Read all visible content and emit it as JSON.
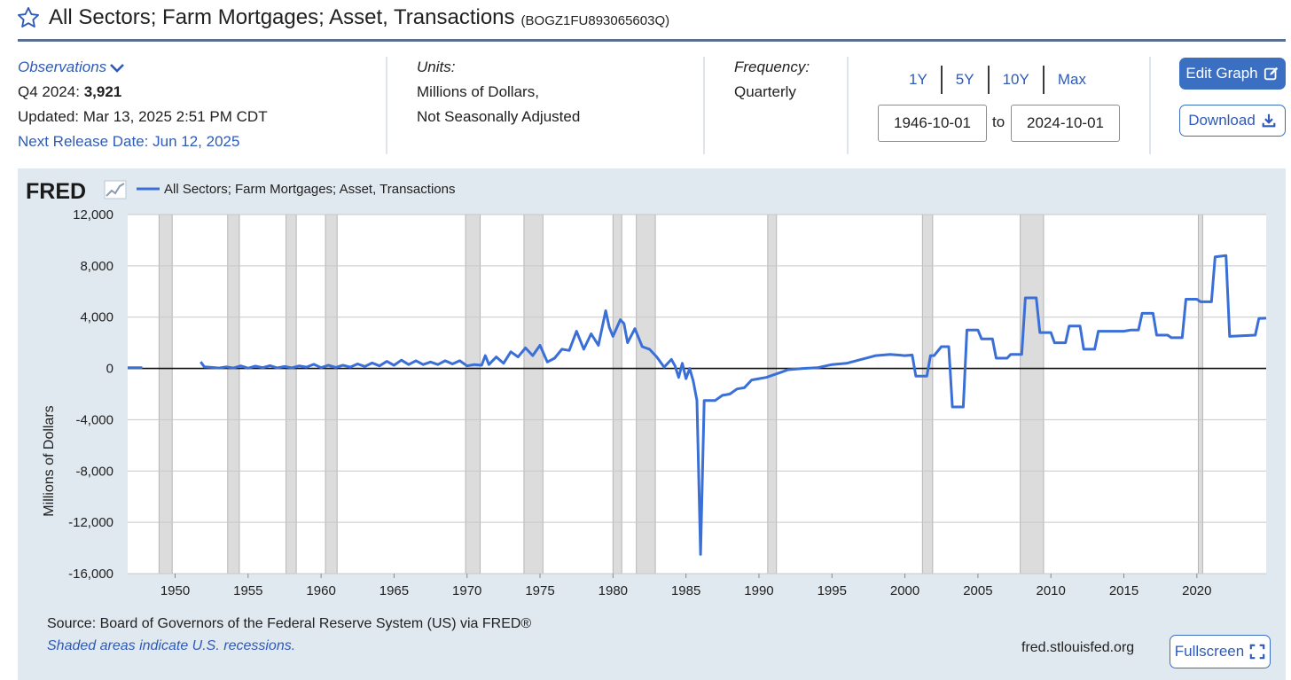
{
  "header": {
    "title": "All Sectors; Farm Mortgages; Asset, Transactions",
    "series_id": "(BOGZ1FU893065603Q)"
  },
  "observations": {
    "label": "Observations",
    "latest_period": "Q4 2024:",
    "latest_value": "3,921",
    "updated": "Updated: Mar 13, 2025 2:51 PM CDT",
    "next_release": "Next Release Date: Jun 12, 2025"
  },
  "units": {
    "label": "Units:",
    "line1": "Millions of Dollars,",
    "line2": "Not Seasonally Adjusted"
  },
  "frequency": {
    "label": "Frequency:",
    "value": "Quarterly"
  },
  "range_buttons": [
    "1Y",
    "5Y",
    "10Y",
    "Max"
  ],
  "dates": {
    "start": "1946-10-01",
    "to_label": "to",
    "end": "2024-10-01"
  },
  "buttons": {
    "edit": "Edit Graph",
    "download": "Download",
    "fullscreen": "Fullscreen"
  },
  "footer": {
    "source": "Source: Board of Governors of the Federal Reserve System (US) via FRED®",
    "recession_note": "Shaded areas indicate U.S. recessions.",
    "site": "fred.stlouisfed.org"
  },
  "colors": {
    "series": "#3a6fd8",
    "recession": "#dcdcdc",
    "panel": "#e1e9f0",
    "accent": "#3a6fc2"
  },
  "chart_data": {
    "type": "line",
    "brand": "FRED",
    "ylabel": "Millions of Dollars",
    "xlim": [
      1946.75,
      2024.75
    ],
    "ylim": [
      -16000,
      12000
    ],
    "y_ticks": [
      12000,
      8000,
      4000,
      0,
      -4000,
      -8000,
      -12000,
      -16000
    ],
    "y_tick_labels": [
      "12,000",
      "8,000",
      "4,000",
      "0",
      "-4,000",
      "-8,000",
      "-12,000",
      "-16,000"
    ],
    "x_ticks": [
      1950,
      1955,
      1960,
      1965,
      1970,
      1975,
      1980,
      1985,
      1990,
      1995,
      2000,
      2005,
      2010,
      2015,
      2020
    ],
    "grid": true,
    "legend_position": "top-left",
    "recessions": [
      [
        1948.9,
        1949.8
      ],
      [
        1953.6,
        1954.4
      ],
      [
        1957.6,
        1958.3
      ],
      [
        1960.3,
        1961.1
      ],
      [
        1969.9,
        1970.9
      ],
      [
        1973.9,
        1975.2
      ],
      [
        1980.0,
        1980.6
      ],
      [
        1981.6,
        1982.9
      ],
      [
        1990.6,
        1991.2
      ],
      [
        2001.2,
        2001.9
      ],
      [
        2007.9,
        2009.5
      ],
      [
        2020.1,
        2020.4
      ]
    ],
    "series": [
      {
        "name": "All Sectors; Farm Mortgages; Asset, Transactions",
        "segments": [
          [
            [
              1946.75,
              50
            ],
            [
              1947.75,
              60
            ]
          ],
          [
            [
              1951.75,
              520
            ],
            [
              1952.0,
              120
            ],
            [
              1952.5,
              80
            ],
            [
              1953.0,
              30
            ],
            [
              1953.5,
              120
            ],
            [
              1954.0,
              30
            ],
            [
              1954.5,
              200
            ],
            [
              1955.0,
              20
            ],
            [
              1955.5,
              180
            ],
            [
              1956.0,
              60
            ],
            [
              1956.5,
              220
            ],
            [
              1957.0,
              40
            ],
            [
              1957.5,
              150
            ],
            [
              1958.0,
              40
            ],
            [
              1958.5,
              200
            ],
            [
              1959.0,
              100
            ],
            [
              1959.5,
              320
            ],
            [
              1960.0,
              60
            ],
            [
              1960.5,
              250
            ],
            [
              1961.0,
              80
            ],
            [
              1961.5,
              250
            ],
            [
              1962.0,
              100
            ],
            [
              1962.5,
              350
            ],
            [
              1963.0,
              150
            ],
            [
              1963.5,
              430
            ],
            [
              1964.0,
              200
            ],
            [
              1964.5,
              550
            ],
            [
              1965.0,
              250
            ],
            [
              1965.5,
              650
            ],
            [
              1966.0,
              300
            ],
            [
              1966.5,
              600
            ],
            [
              1967.0,
              300
            ],
            [
              1967.5,
              500
            ],
            [
              1968.0,
              300
            ],
            [
              1968.5,
              600
            ],
            [
              1969.0,
              350
            ],
            [
              1969.5,
              600
            ],
            [
              1970.0,
              200
            ],
            [
              1970.5,
              300
            ],
            [
              1971.0,
              250
            ],
            [
              1971.25,
              1000
            ],
            [
              1971.5,
              300
            ],
            [
              1972.0,
              900
            ],
            [
              1972.5,
              400
            ],
            [
              1973.0,
              1300
            ],
            [
              1973.5,
              900
            ],
            [
              1974.0,
              1600
            ],
            [
              1974.5,
              1000
            ],
            [
              1975.0,
              1800
            ],
            [
              1975.5,
              500
            ],
            [
              1976.0,
              800
            ],
            [
              1976.5,
              1500
            ],
            [
              1977.0,
              1400
            ],
            [
              1977.5,
              2900
            ],
            [
              1978.0,
              1500
            ],
            [
              1978.5,
              2700
            ],
            [
              1979.0,
              1800
            ],
            [
              1979.5,
              4500
            ],
            [
              1979.75,
              3200
            ],
            [
              1980.0,
              2500
            ],
            [
              1980.5,
              3800
            ],
            [
              1980.75,
              3500
            ],
            [
              1981.0,
              2000
            ],
            [
              1981.5,
              3100
            ],
            [
              1982.0,
              1700
            ],
            [
              1982.5,
              1500
            ],
            [
              1983.0,
              900
            ],
            [
              1983.5,
              100
            ],
            [
              1984.0,
              700
            ],
            [
              1984.25,
              200
            ],
            [
              1984.5,
              -700
            ],
            [
              1984.75,
              400
            ],
            [
              1985.0,
              -800
            ],
            [
              1985.25,
              0
            ],
            [
              1985.5,
              -1000
            ],
            [
              1985.75,
              -2500
            ],
            [
              1986.0,
              -14500
            ],
            [
              1986.25,
              -2500
            ],
            [
              1987.0,
              -2500
            ],
            [
              1987.5,
              -2100
            ],
            [
              1988.0,
              -2000
            ],
            [
              1988.5,
              -1600
            ],
            [
              1989.0,
              -1500
            ],
            [
              1989.5,
              -900
            ],
            [
              1990.0,
              -800
            ],
            [
              1990.5,
              -700
            ],
            [
              1991.0,
              -500
            ],
            [
              1991.5,
              -300
            ],
            [
              1992.0,
              -100
            ],
            [
              1993.0,
              0
            ],
            [
              1994.0,
              50
            ],
            [
              1995.0,
              300
            ],
            [
              1996.0,
              400
            ],
            [
              1997.0,
              700
            ],
            [
              1997.5,
              850
            ],
            [
              1998.0,
              1000
            ],
            [
              1999.0,
              1100
            ],
            [
              2000.0,
              1000
            ],
            [
              2000.5,
              1050
            ],
            [
              2000.75,
              -600
            ],
            [
              2001.5,
              -600
            ],
            [
              2001.75,
              1000
            ],
            [
              2002.0,
              1000
            ],
            [
              2002.5,
              1700
            ],
            [
              2003.0,
              1700
            ],
            [
              2003.25,
              -3000
            ],
            [
              2004.0,
              -3000
            ],
            [
              2004.25,
              3000
            ],
            [
              2005.0,
              3000
            ],
            [
              2005.25,
              2300
            ],
            [
              2006.0,
              2300
            ],
            [
              2006.25,
              800
            ],
            [
              2007.0,
              800
            ],
            [
              2007.25,
              1100
            ],
            [
              2008.0,
              1100
            ],
            [
              2008.25,
              5500
            ],
            [
              2009.0,
              5500
            ],
            [
              2009.25,
              2800
            ],
            [
              2010.0,
              2800
            ],
            [
              2010.25,
              2000
            ],
            [
              2011.0,
              2000
            ],
            [
              2011.25,
              3300
            ],
            [
              2012.0,
              3300
            ],
            [
              2012.25,
              1500
            ],
            [
              2013.0,
              1500
            ],
            [
              2013.25,
              2900
            ],
            [
              2014.0,
              2900
            ],
            [
              2015.0,
              2900
            ],
            [
              2015.5,
              3000
            ],
            [
              2016.0,
              3000
            ],
            [
              2016.25,
              4300
            ],
            [
              2017.0,
              4300
            ],
            [
              2017.25,
              2600
            ],
            [
              2018.0,
              2600
            ],
            [
              2018.25,
              2400
            ],
            [
              2019.0,
              2400
            ],
            [
              2019.25,
              5400
            ],
            [
              2020.0,
              5400
            ],
            [
              2020.25,
              5200
            ],
            [
              2021.0,
              5200
            ],
            [
              2021.25,
              8700
            ],
            [
              2022.0,
              8800
            ],
            [
              2022.25,
              2500
            ],
            [
              2024.0,
              2600
            ],
            [
              2024.25,
              3900
            ],
            [
              2024.75,
              3921
            ]
          ]
        ]
      }
    ]
  }
}
